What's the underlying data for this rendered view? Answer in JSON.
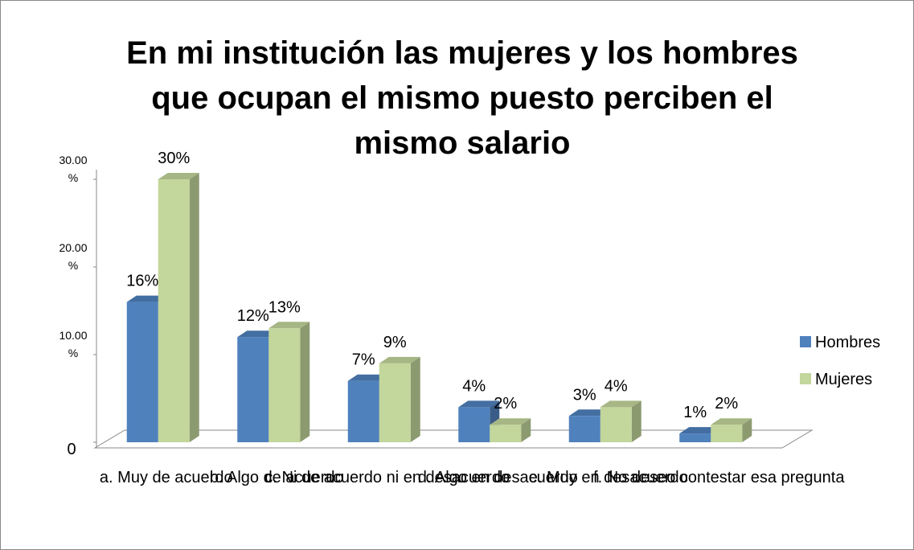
{
  "chart_data": {
    "type": "bar3d",
    "title": "En mi institución las mujeres y los hombres que ocupan el mismo puesto perciben el mismo salario",
    "categories": [
      "a. Muy de acuerdo",
      "b. Algo de acuerdo",
      "c. Ni de acuerdo ni en desacuerdo",
      "d. Algo en desacuerdo",
      "e. Muy en desacuerdo",
      "f. No deseo contestar esa pregunta"
    ],
    "series": [
      {
        "name": "Hombres",
        "color": "#4f81bd",
        "values": [
          16,
          12,
          7,
          4,
          3,
          1
        ],
        "value_labels": [
          "16%",
          "12%",
          "7%",
          "4%",
          "3%",
          "1%"
        ]
      },
      {
        "name": "Mujeres",
        "color": "#c3d69b",
        "values": [
          30,
          13,
          9,
          2,
          4,
          2
        ],
        "value_labels": [
          "30%",
          "13%",
          "9%",
          "2%",
          "4%",
          "2%"
        ]
      }
    ],
    "ylim": [
      0,
      30
    ],
    "yticks": [
      0,
      {
        "value": 10,
        "label": "10.00 %"
      },
      {
        "value": 20,
        "label": "20.00 %"
      },
      {
        "value": 30,
        "label": "30.00 %"
      }
    ],
    "legend": "right"
  }
}
